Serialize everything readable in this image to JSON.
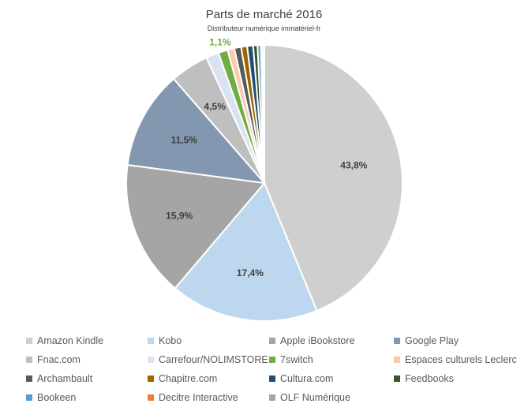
{
  "chart_data": {
    "type": "pie",
    "title": "Parts de marché 2016",
    "subtitle": "Distributeur numérique immatériel-fr",
    "legend_position": "bottom",
    "slices": [
      {
        "name": "Amazon Kindle",
        "value": 43.8,
        "label": "43,8%",
        "color": "#d0cfcf"
      },
      {
        "name": "Kobo",
        "value": 17.4,
        "label": "17,4%",
        "color": "#bdd7ee"
      },
      {
        "name": "Apple iBookstore",
        "value": 15.9,
        "label": "15,9%",
        "color": "#a5a5a5"
      },
      {
        "name": "Google Play",
        "value": 11.5,
        "label": "11,5%",
        "color": "#8497b0"
      },
      {
        "name": "Fnac.com",
        "value": 4.5,
        "label": "4,5%",
        "color": "#bfbfbf"
      },
      {
        "name": "Carrefour/NOLIMSTORE",
        "value": 1.5,
        "label": "",
        "color": "#dae3f3"
      },
      {
        "name": "7switch",
        "value": 1.1,
        "label": "1,1%",
        "color": "#70ad47"
      },
      {
        "name": "Espaces culturels Leclerc",
        "value": 0.8,
        "label": "",
        "color": "#f8cbad"
      },
      {
        "name": "Archambault",
        "value": 0.8,
        "label": "",
        "color": "#595959"
      },
      {
        "name": "Chapitre.com",
        "value": 0.7,
        "label": "",
        "color": "#9c6500"
      },
      {
        "name": "Cultura.com",
        "value": 0.7,
        "label": "",
        "color": "#1f4e79"
      },
      {
        "name": "Feedbooks",
        "value": 0.5,
        "label": "",
        "color": "#375623"
      },
      {
        "name": "Bookeen",
        "value": 0.4,
        "label": "",
        "color": "#5b9bd5"
      },
      {
        "name": "Decitre Interactive",
        "value": 0.2,
        "label": "",
        "color": "#ed7d31"
      },
      {
        "name": "OLF Numérique",
        "value": 0.2,
        "label": "",
        "color": "#a5a5a5"
      }
    ]
  }
}
